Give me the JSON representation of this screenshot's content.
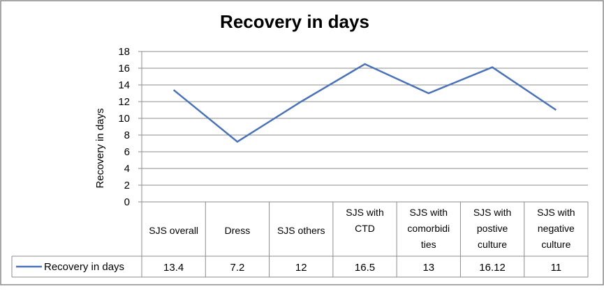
{
  "chart_data": {
    "type": "line",
    "title": "Recovery in days",
    "ylabel": "Recovery in days",
    "xlabel": "",
    "ylim": [
      0,
      18
    ],
    "ytick_step": 2,
    "yticks": [
      "0",
      "2",
      "4",
      "6",
      "8",
      "10",
      "12",
      "14",
      "16",
      "18"
    ],
    "grid": true,
    "legend_position": "data-table",
    "categories": [
      [
        "SJS overall"
      ],
      [
        "Dress"
      ],
      [
        "SJS others"
      ],
      [
        "SJS  with",
        "CTD"
      ],
      [
        "SJS with",
        "comorbidi",
        "ties"
      ],
      [
        "SJS with",
        "postive",
        "culture"
      ],
      [
        "SJS with",
        "negative",
        "culture"
      ]
    ],
    "series": [
      {
        "name": "Recovery in days",
        "color": "#4a72b8",
        "values": [
          13.4,
          7.2,
          12,
          16.5,
          13,
          16.12,
          11
        ],
        "labels": [
          "13.4",
          "7.2",
          "12",
          "16.5",
          "13",
          "16.12",
          "11"
        ]
      }
    ]
  }
}
